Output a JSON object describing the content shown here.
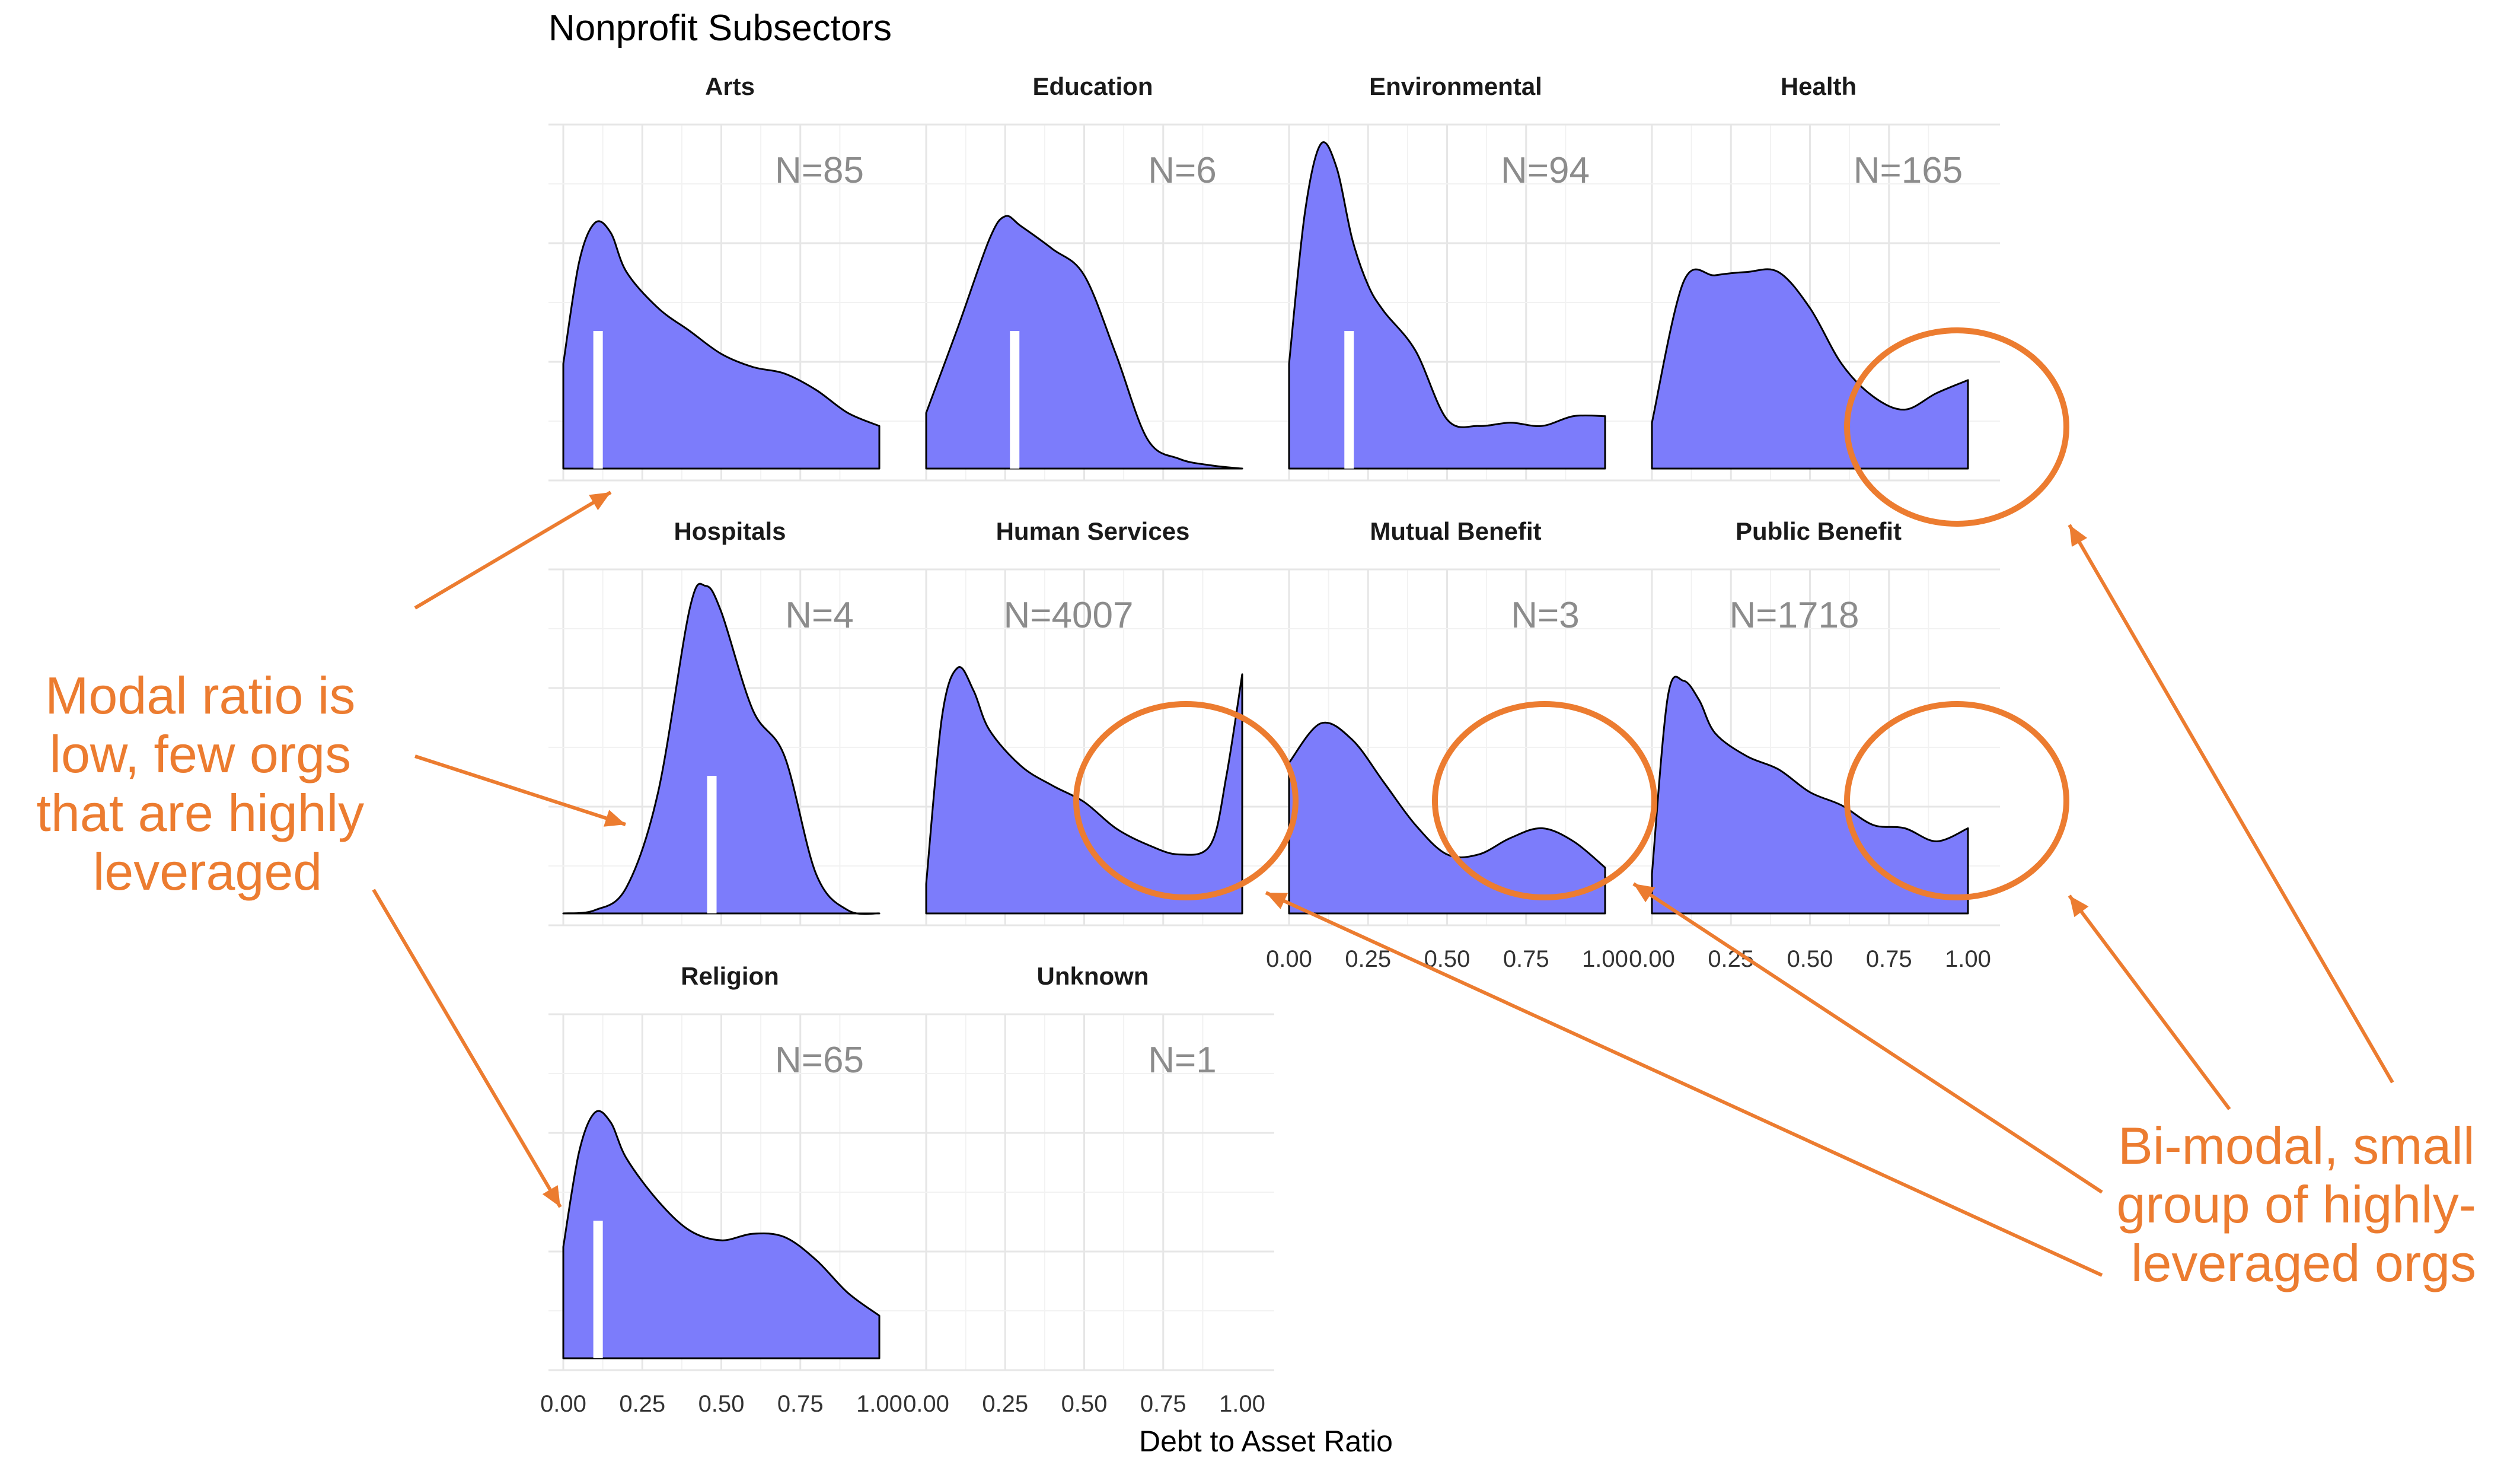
{
  "chart_data": {
    "type": "area",
    "subtype": "faceted density",
    "title": "Nonprofit Subsectors",
    "xlabel": "Debt to Asset Ratio",
    "ylabel": "",
    "xlim": [
      0,
      1
    ],
    "x_ticks": [
      "0.00",
      "0.25",
      "0.50",
      "0.75",
      "1.00"
    ],
    "grid": true,
    "legend": "none",
    "colors": {
      "fill": "#7c7cfb",
      "outline": "#000000",
      "median_marker": "#ffffff",
      "annotation": "#ec7c30"
    },
    "panels": [
      {
        "name": "Arts",
        "n_label": "N=85",
        "median": 0.11,
        "x": [
          0,
          0.05,
          0.1,
          0.15,
          0.2,
          0.3,
          0.4,
          0.5,
          0.6,
          0.7,
          0.8,
          0.9,
          1.0
        ],
        "density": [
          0.32,
          0.63,
          0.75,
          0.72,
          0.6,
          0.49,
          0.42,
          0.35,
          0.31,
          0.29,
          0.24,
          0.17,
          0.13
        ]
      },
      {
        "name": "Education",
        "n_label": "N=6",
        "median": 0.28,
        "x": [
          0,
          0.1,
          0.2,
          0.25,
          0.3,
          0.4,
          0.5,
          0.6,
          0.7,
          0.8,
          0.9,
          1.0
        ],
        "density": [
          0.17,
          0.43,
          0.7,
          0.77,
          0.74,
          0.67,
          0.59,
          0.35,
          0.09,
          0.03,
          0.01,
          0.0
        ]
      },
      {
        "name": "Environmental",
        "n_label": "N=94",
        "median": 0.19,
        "x": [
          0,
          0.05,
          0.1,
          0.15,
          0.2,
          0.25,
          0.3,
          0.4,
          0.5,
          0.6,
          0.7,
          0.8,
          0.9,
          1.0
        ],
        "density": [
          0.32,
          0.78,
          0.99,
          0.92,
          0.7,
          0.56,
          0.48,
          0.36,
          0.15,
          0.13,
          0.14,
          0.13,
          0.16,
          0.16
        ]
      },
      {
        "name": "Health",
        "n_label": "N=165",
        "median": null,
        "x": [
          0,
          0.1,
          0.2,
          0.3,
          0.4,
          0.5,
          0.6,
          0.7,
          0.8,
          0.9,
          1.0
        ],
        "density": [
          0.14,
          0.57,
          0.59,
          0.6,
          0.6,
          0.49,
          0.32,
          0.22,
          0.18,
          0.23,
          0.27
        ]
      },
      {
        "name": "Hospitals",
        "n_label": "N=4",
        "median": 0.47,
        "x": [
          0,
          0.1,
          0.2,
          0.3,
          0.4,
          0.45,
          0.5,
          0.6,
          0.7,
          0.8,
          0.9,
          1.0
        ],
        "density": [
          0.0,
          0.01,
          0.08,
          0.37,
          0.93,
          1.0,
          0.92,
          0.62,
          0.48,
          0.12,
          0.01,
          0.0
        ]
      },
      {
        "name": "Human Services",
        "n_label": "N=4007",
        "median": null,
        "x": [
          0,
          0.05,
          0.1,
          0.15,
          0.2,
          0.3,
          0.4,
          0.5,
          0.6,
          0.7,
          0.8,
          0.9,
          0.95,
          1.0
        ],
        "density": [
          0.09,
          0.6,
          0.75,
          0.68,
          0.56,
          0.45,
          0.39,
          0.34,
          0.26,
          0.21,
          0.18,
          0.21,
          0.42,
          0.73
        ]
      },
      {
        "name": "Mutual Benefit",
        "n_label": "N=3",
        "median": null,
        "x": [
          0,
          0.1,
          0.2,
          0.3,
          0.4,
          0.5,
          0.6,
          0.7,
          0.8,
          0.9,
          1.0
        ],
        "density": [
          0.46,
          0.58,
          0.53,
          0.4,
          0.27,
          0.18,
          0.18,
          0.23,
          0.26,
          0.22,
          0.14
        ]
      },
      {
        "name": "Public Benefit",
        "n_label": "N=1718",
        "median": null,
        "x": [
          0,
          0.05,
          0.1,
          0.15,
          0.2,
          0.3,
          0.4,
          0.5,
          0.6,
          0.7,
          0.8,
          0.9,
          1.0
        ],
        "density": [
          0.12,
          0.66,
          0.71,
          0.65,
          0.55,
          0.48,
          0.44,
          0.37,
          0.33,
          0.27,
          0.26,
          0.22,
          0.26
        ]
      },
      {
        "name": "Religion",
        "n_label": "N=65",
        "median": 0.11,
        "x": [
          0,
          0.05,
          0.1,
          0.15,
          0.2,
          0.3,
          0.4,
          0.5,
          0.6,
          0.7,
          0.8,
          0.9,
          1.0
        ],
        "density": [
          0.34,
          0.63,
          0.75,
          0.72,
          0.61,
          0.48,
          0.39,
          0.36,
          0.38,
          0.37,
          0.3,
          0.2,
          0.13
        ]
      },
      {
        "name": "Unknown",
        "n_label": "N=1",
        "median": null,
        "x": [],
        "density": []
      }
    ],
    "annotations": [
      "Modal ratio is\nlow, few orgs\nthat are highly\nleveraged",
      "Bi-modal, small\ngroup of highly-\nleveraged orgs"
    ]
  }
}
